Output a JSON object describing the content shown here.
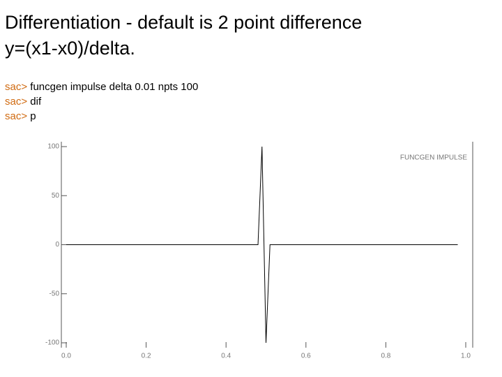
{
  "slide": {
    "title_lines": [
      "Differentiation - default is 2 point difference",
      "y=(x1-x0)/delta."
    ],
    "commands": [
      {
        "prompt": "sac>",
        "text": "funcgen impulse delta 0.01 npts 100"
      },
      {
        "prompt": "sac>",
        "text": "dif"
      },
      {
        "prompt": "sac>",
        "text": "p"
      }
    ]
  },
  "chart_data": {
    "type": "line",
    "annotation": "FUNCGEN IMPULSE",
    "x": [
      0.0,
      0.48,
      0.49,
      0.5,
      0.51,
      0.98
    ],
    "series": [
      {
        "color": "#000000",
        "values": [
          0,
          0,
          100,
          -100,
          0,
          0
        ]
      }
    ],
    "xlim": [
      0,
      1
    ],
    "ylim": [
      -100,
      100
    ],
    "xticks": [
      {
        "value": 0,
        "label": "0.0"
      },
      0.2,
      0.4,
      0.6,
      0.8,
      {
        "value": 1,
        "label": "1.0"
      }
    ],
    "yticks": [
      100,
      50,
      0,
      -50,
      -100
    ]
  }
}
